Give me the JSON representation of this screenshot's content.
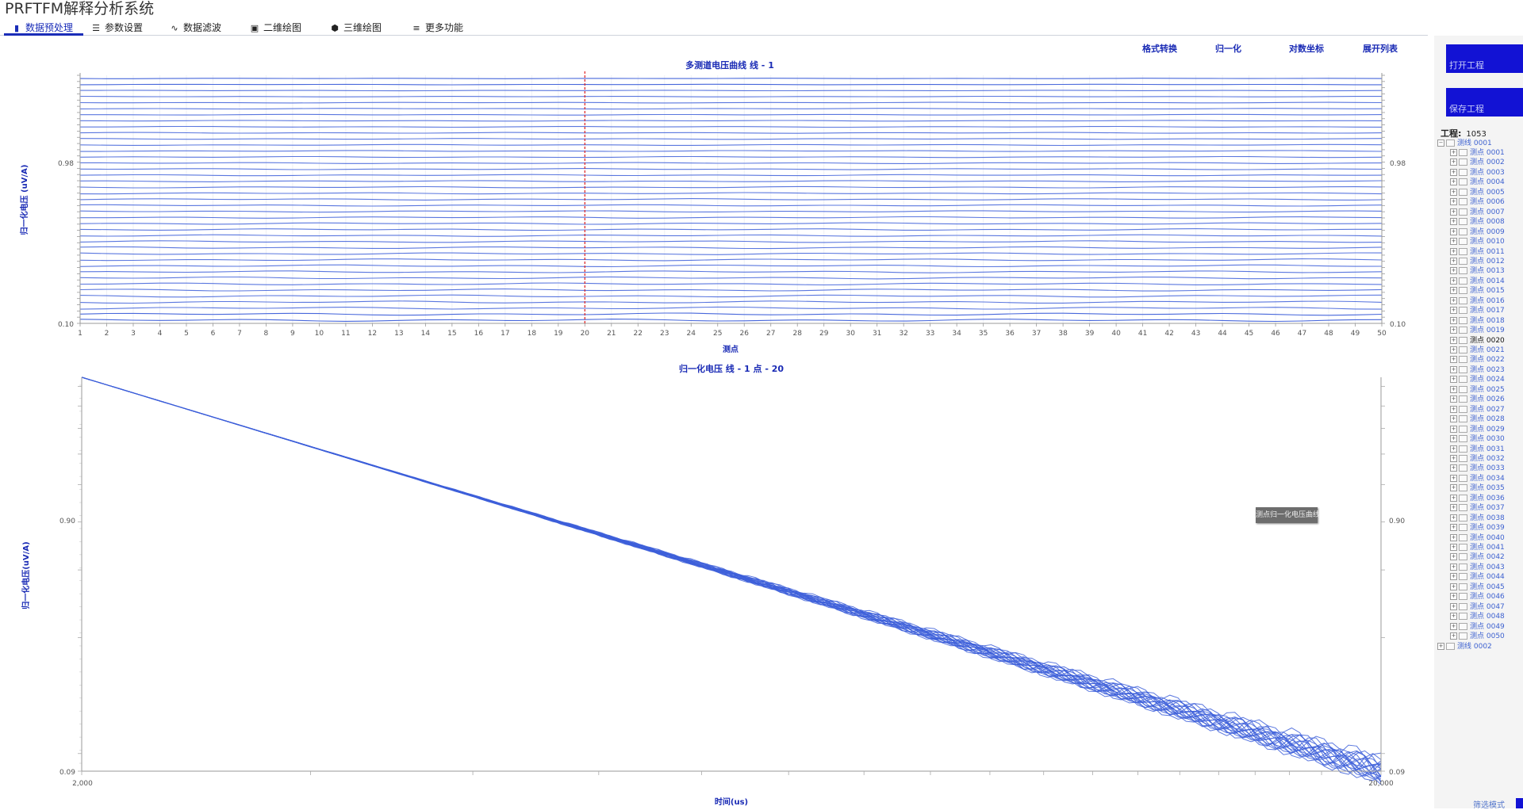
{
  "app": {
    "title": "PRFTFM解释分析系统"
  },
  "tabs": [
    {
      "label": "数据预处理",
      "icon": "bar-chart-icon",
      "active": true
    },
    {
      "label": "参数设置",
      "icon": "sliders-icon",
      "active": false
    },
    {
      "label": "数据滤波",
      "icon": "waveform-icon",
      "active": false
    },
    {
      "label": "二维绘图",
      "icon": "image-icon",
      "active": false
    },
    {
      "label": "三维绘图",
      "icon": "cube-icon",
      "active": false
    },
    {
      "label": "更多功能",
      "icon": "menu-icon",
      "active": false
    }
  ],
  "toolbar": {
    "format_convert": "格式转换",
    "normalize": "归一化",
    "log_coords": "对数坐标",
    "expand_list": "展开列表"
  },
  "sidebar": {
    "open_project": "打开工程",
    "save_project": "保存工程",
    "project_label": "工程:",
    "project_value": "1053",
    "line_1": "测线 0001",
    "line_2": "测线 0002",
    "points": [
      "测点 0001",
      "测点 0002",
      "测点 0003",
      "测点 0004",
      "测点 0005",
      "测点 0006",
      "测点 0007",
      "测点 0008",
      "测点 0009",
      "测点 0010",
      "测点 0011",
      "测点 0012",
      "测点 0013",
      "测点 0014",
      "测点 0015",
      "测点 0016",
      "测点 0017",
      "测点 0018",
      "测点 0019",
      "测点 0020",
      "测点 0021",
      "测点 0022",
      "测点 0023",
      "测点 0024",
      "测点 0025",
      "测点 0026",
      "测点 0027",
      "测点 0028",
      "测点 0029",
      "测点 0030",
      "测点 0031",
      "测点 0032",
      "测点 0033",
      "测点 0034",
      "测点 0035",
      "测点 0036",
      "测点 0037",
      "测点 0038",
      "测点 0039",
      "测点 0040",
      "测点 0041",
      "测点 0042",
      "测点 0043",
      "测点 0044",
      "测点 0045",
      "测点 0046",
      "测点 0047",
      "测点 0048",
      "测点 0049",
      "测点 0050"
    ],
    "selected_point": "测点 0020"
  },
  "tooltip": "测点归一化电压曲线",
  "status": {
    "mode": "筛选模式"
  },
  "colors": {
    "accent": "#1a2db8",
    "curve": "#3d5fd9",
    "marker": "#e02020",
    "button": "#1212d4"
  },
  "chart_data": [
    {
      "type": "line",
      "title": "多测道电压曲线 线 - 1",
      "xlabel": "测点",
      "ylabel": "归一化电压 (uV/A)",
      "x": [
        1,
        2,
        3,
        4,
        5,
        6,
        7,
        8,
        9,
        10,
        11,
        12,
        13,
        14,
        15,
        16,
        17,
        18,
        19,
        20,
        21,
        22,
        23,
        24,
        25,
        26,
        27,
        28,
        29,
        30,
        31,
        32,
        33,
        34,
        35,
        36,
        37,
        38,
        39,
        40,
        41,
        42,
        43,
        44,
        45,
        46,
        47,
        48,
        49,
        50
      ],
      "xlim": [
        1,
        50
      ],
      "ylim": [
        0.1,
        1.0
      ],
      "ytick_labels": [
        "0.10",
        "0.98"
      ],
      "ytick_values": [
        0.1,
        0.98
      ],
      "scale": "log",
      "series_count": 41,
      "marker_x": 20
    },
    {
      "type": "line",
      "title": "归一化电压 线 - 1  点 - 20",
      "xlabel": "时间(us)",
      "ylabel": "归一化电压(uV/A)",
      "xscale": "log",
      "yscale": "log",
      "xlim": [
        2000,
        20000
      ],
      "ylim": [
        0.09,
        0.95
      ],
      "xtick_labels": [
        "2,000",
        "20,000"
      ],
      "ytick_labels": [
        "0.90",
        "0.09"
      ],
      "series_count": 20,
      "series": [
        {
          "name": "测点 0020",
          "x": [
            2000,
            20000
          ],
          "y": [
            0.95,
            0.09
          ]
        }
      ]
    }
  ]
}
